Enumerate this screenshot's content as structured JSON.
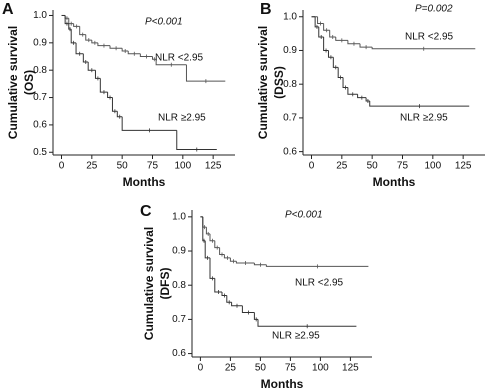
{
  "chart_data": [
    {
      "type": "line",
      "step": true,
      "panel": "A",
      "annotation": "P<0.001",
      "xlabel": "Months",
      "ylabel": [
        "Cumulative survival",
        "(OS)"
      ],
      "xlim": [
        -7,
        143
      ],
      "xticks": [
        0,
        25,
        50,
        75,
        100,
        125
      ],
      "ylim": [
        0.49,
        1.02
      ],
      "yticks": [
        0.5,
        0.6,
        0.7,
        0.8,
        0.9,
        {
          "value": 1.0,
          "label": "1.0"
        }
      ],
      "series": [
        {
          "name": "NLR <2.95",
          "color": "#555555",
          "x": [
            0,
            3,
            6,
            10,
            15,
            20,
            25,
            30,
            40,
            50,
            55,
            65,
            75,
            78,
            103,
            135
          ],
          "values": [
            1.0,
            0.99,
            0.97,
            0.96,
            0.93,
            0.91,
            0.9,
            0.89,
            0.88,
            0.87,
            0.86,
            0.85,
            0.84,
            0.82,
            0.76,
            0.76
          ]
        },
        {
          "name": "NLR ≥2.95",
          "color": "#333333",
          "x": [
            0,
            3,
            6,
            8,
            12,
            18,
            22,
            28,
            32,
            38,
            42,
            46,
            50,
            95,
            128
          ],
          "values": [
            1.0,
            0.97,
            0.95,
            0.9,
            0.86,
            0.83,
            0.8,
            0.77,
            0.72,
            0.7,
            0.65,
            0.63,
            0.58,
            0.51,
            0.51
          ]
        }
      ]
    },
    {
      "type": "line",
      "step": true,
      "panel": "B",
      "annotation": "P=0.002",
      "xlabel": "Months",
      "ylabel": [
        "Cumulative survival",
        "(DSS)"
      ],
      "xlim": [
        -7,
        143
      ],
      "xticks": [
        0,
        25,
        50,
        75,
        100,
        125
      ],
      "ylim": [
        0.59,
        1.02
      ],
      "yticks": [
        0.6,
        0.7,
        0.8,
        0.9,
        {
          "value": 1.0,
          "label": "1.0"
        }
      ],
      "series": [
        {
          "name": "NLR <2.95",
          "color": "#555555",
          "x": [
            0,
            5,
            10,
            15,
            20,
            30,
            40,
            50,
            135
          ],
          "values": [
            1.0,
            0.98,
            0.96,
            0.94,
            0.93,
            0.92,
            0.91,
            0.905,
            0.905
          ]
        },
        {
          "name": "NLR ≥2.95",
          "color": "#333333",
          "x": [
            0,
            3,
            6,
            10,
            14,
            18,
            22,
            26,
            30,
            38,
            45,
            48,
            130
          ],
          "values": [
            1.0,
            0.97,
            0.94,
            0.9,
            0.88,
            0.85,
            0.82,
            0.79,
            0.77,
            0.76,
            0.75,
            0.735,
            0.735
          ]
        }
      ]
    },
    {
      "type": "line",
      "step": true,
      "panel": "C",
      "annotation": "P<0.001",
      "xlabel": "Months",
      "ylabel": [
        "Cumulative survival",
        "(DFS)"
      ],
      "xlim": [
        -7,
        143
      ],
      "xticks": [
        0,
        25,
        50,
        75,
        100,
        125
      ],
      "ylim": [
        0.59,
        1.02
      ],
      "yticks": [
        0.6,
        0.7,
        0.8,
        0.9,
        {
          "value": 1.0,
          "label": "1.0"
        }
      ],
      "series": [
        {
          "name": "NLR <2.95",
          "color": "#555555",
          "x": [
            0,
            2,
            5,
            8,
            12,
            16,
            20,
            25,
            30,
            45,
            55,
            140
          ],
          "values": [
            1.0,
            0.97,
            0.95,
            0.93,
            0.91,
            0.89,
            0.88,
            0.87,
            0.865,
            0.86,
            0.855,
            0.855
          ]
        },
        {
          "name": "NLR ≥2.95",
          "color": "#333333",
          "x": [
            0,
            2,
            4,
            8,
            12,
            18,
            22,
            26,
            35,
            45,
            48,
            130
          ],
          "values": [
            1.0,
            0.93,
            0.88,
            0.82,
            0.78,
            0.77,
            0.75,
            0.74,
            0.72,
            0.7,
            0.68,
            0.68
          ]
        }
      ]
    }
  ]
}
